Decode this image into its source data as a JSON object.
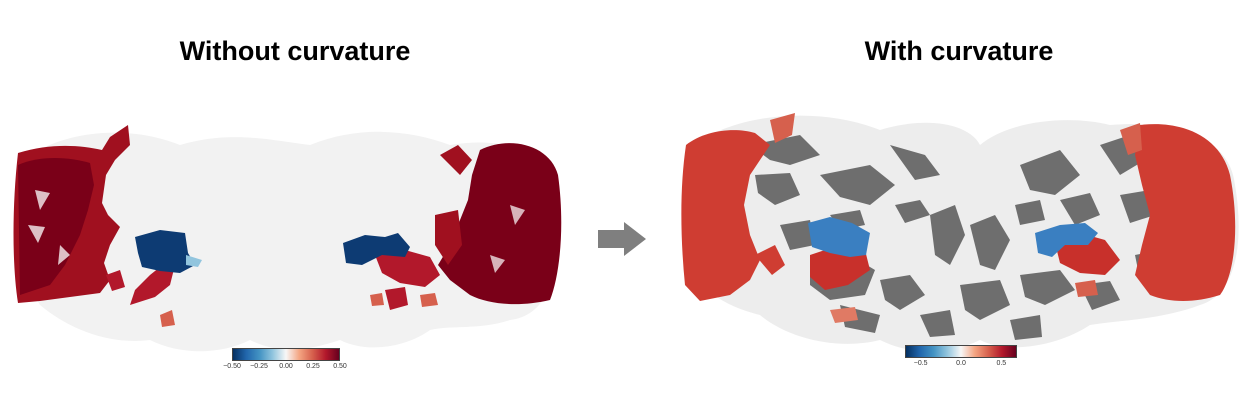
{
  "left": {
    "title": "Without curvature",
    "colorbar": {
      "ticks": [
        "−0.50",
        "−0.25",
        "0.00",
        "0.25",
        "0.50"
      ],
      "colors": [
        "#053061",
        "#2166ac",
        "#4393c3",
        "#92c5de",
        "#f7f7f7",
        "#f4a582",
        "#d6604d",
        "#b2182b",
        "#67001f"
      ]
    }
  },
  "right": {
    "title": "With curvature",
    "colorbar": {
      "ticks": [
        "−0.5",
        "0.0",
        "0.5"
      ],
      "colors": [
        "#053061",
        "#2166ac",
        "#4393c3",
        "#92c5de",
        "#f7f7f7",
        "#f4a582",
        "#d6604d",
        "#b2182b",
        "#67001f"
      ]
    }
  },
  "arrow": {
    "icon": "right-arrow-icon",
    "color": "#7f7f7f"
  }
}
